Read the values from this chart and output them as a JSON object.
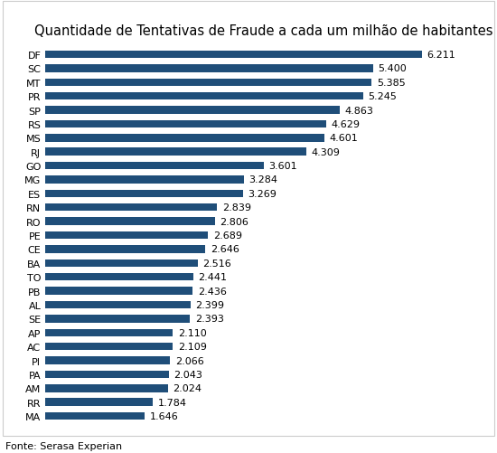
{
  "title": "Quantidade de Tentativas de Fraude a cada um milhão de habitantes",
  "categories": [
    "DF",
    "SC",
    "MT",
    "PR",
    "SP",
    "RS",
    "MS",
    "RJ",
    "GO",
    "MG",
    "ES",
    "RN",
    "RO",
    "PE",
    "CE",
    "BA",
    "TO",
    "PB",
    "AL",
    "SE",
    "AP",
    "AC",
    "PI",
    "PA",
    "AM",
    "RR",
    "MA"
  ],
  "values": [
    6.211,
    5.4,
    5.385,
    5.245,
    4.863,
    4.629,
    4.601,
    4.309,
    3.601,
    3.284,
    3.269,
    2.839,
    2.806,
    2.689,
    2.646,
    2.516,
    2.441,
    2.436,
    2.399,
    2.393,
    2.11,
    2.109,
    2.066,
    2.043,
    2.024,
    1.784,
    1.646
  ],
  "bar_color": "#1F4E79",
  "value_labels": [
    "6.211",
    "5.400",
    "5.385",
    "5.245",
    "4.863",
    "4.629",
    "4.601",
    "4.309",
    "3.601",
    "3.284",
    "3.269",
    "2.839",
    "2.806",
    "2.689",
    "2.646",
    "2.516",
    "2.441",
    "2.436",
    "2.399",
    "2.393",
    "2.110",
    "2.109",
    "2.066",
    "2.043",
    "2.024",
    "1.784",
    "1.646"
  ],
  "source_text": "Fonte: Serasa Experian",
  "background_color": "#FFFFFF",
  "title_fontsize": 10.5,
  "label_fontsize": 8,
  "value_fontsize": 8,
  "source_fontsize": 8,
  "xlim": [
    0,
    7.2
  ]
}
